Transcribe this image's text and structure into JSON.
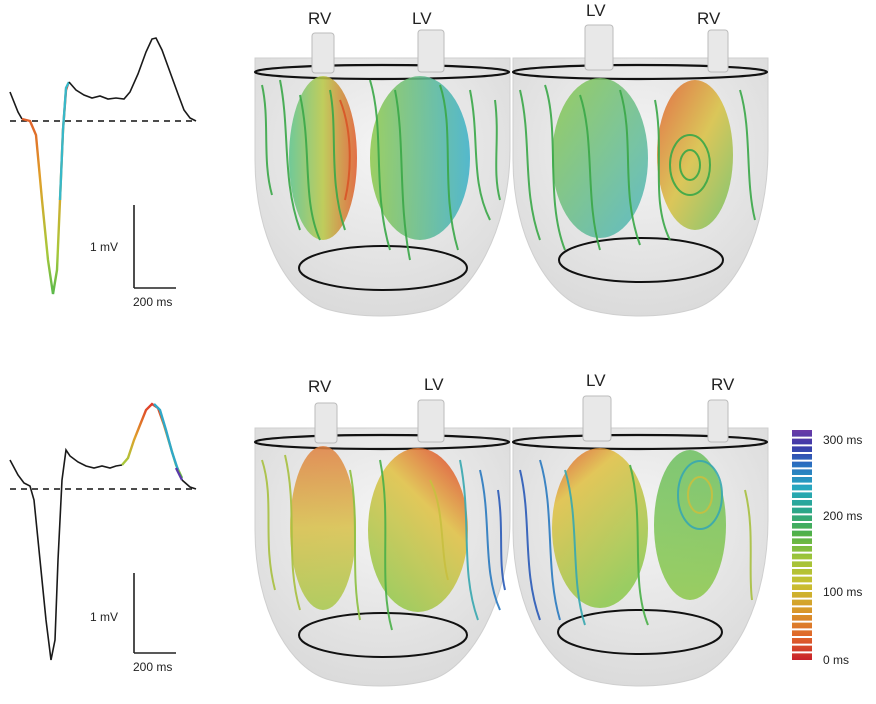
{
  "top_row": {
    "ecg_panel": {
      "amplitude_scale": "1 mV",
      "time_scale": "200 ms"
    },
    "anterior_view": {
      "left_label": "RV",
      "right_label": "LV"
    },
    "posterior_view": {
      "left_label": "LV",
      "right_label": "RV"
    }
  },
  "bottom_row": {
    "ecg_panel": {
      "amplitude_scale": "1 mV",
      "time_scale": "200 ms"
    },
    "anterior_view": {
      "left_label": "RV",
      "right_label": "LV"
    },
    "posterior_view": {
      "left_label": "LV",
      "right_label": "RV"
    }
  },
  "colorbar": {
    "tick_labels": [
      "300 ms",
      "200 ms",
      "100 ms",
      "0 ms"
    ],
    "tick_values": [
      300,
      200,
      100,
      0
    ],
    "range": [
      0,
      300
    ],
    "colors": [
      "#c8202a",
      "#e0642a",
      "#d89a2a",
      "#c8c030",
      "#9cc43a",
      "#4fb048",
      "#2aa68a",
      "#28a8c0",
      "#2a6fc0",
      "#3a3aa8",
      "#6a3aa8"
    ]
  },
  "colors": {
    "trace": "#1a1a1a",
    "baseline": "#111111",
    "heart_shell": "#e8e8e8",
    "ventricle_outline": "#101010"
  }
}
